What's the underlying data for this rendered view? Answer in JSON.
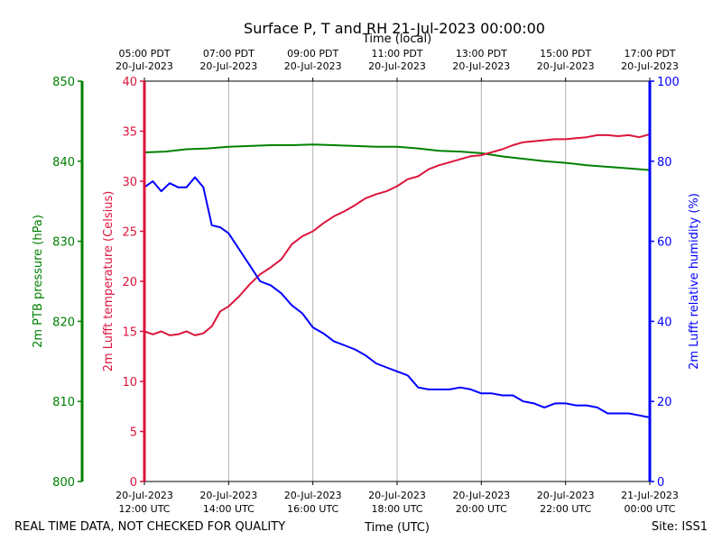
{
  "chart_data": {
    "type": "line",
    "title": "Surface P, T and RH 21-Jul-2023 00:00:00",
    "top_axis_label": "Time (local)",
    "bottom_axis_label": "Time (UTC)",
    "footer_left": "REAL TIME DATA, NOT CHECKED FOR QUALITY",
    "footer_right": "Site: ISS1",
    "x_ticks_utc": [
      {
        "l1": "20-Jul-2023",
        "l2": "12:00 UTC"
      },
      {
        "l1": "20-Jul-2023",
        "l2": "14:00 UTC"
      },
      {
        "l1": "20-Jul-2023",
        "l2": "16:00 UTC"
      },
      {
        "l1": "20-Jul-2023",
        "l2": "18:00 UTC"
      },
      {
        "l1": "20-Jul-2023",
        "l2": "20:00 UTC"
      },
      {
        "l1": "20-Jul-2023",
        "l2": "22:00 UTC"
      },
      {
        "l1": "21-Jul-2023",
        "l2": "00:00 UTC"
      }
    ],
    "x_ticks_local": [
      {
        "l1": "05:00 PDT",
        "l2": "20-Jul-2023"
      },
      {
        "l1": "07:00 PDT",
        "l2": "20-Jul-2023"
      },
      {
        "l1": "09:00 PDT",
        "l2": "20-Jul-2023"
      },
      {
        "l1": "11:00 PDT",
        "l2": "20-Jul-2023"
      },
      {
        "l1": "13:00 PDT",
        "l2": "20-Jul-2023"
      },
      {
        "l1": "15:00 PDT",
        "l2": "20-Jul-2023"
      },
      {
        "l1": "17:00 PDT",
        "l2": "20-Jul-2023"
      }
    ],
    "x_range_hours_utc": [
      12,
      24
    ],
    "grid": "vertical",
    "axes": {
      "pressure": {
        "label": "2m PTB pressure (hPa)",
        "range": [
          800,
          850
        ],
        "ticks": [
          800,
          810,
          820,
          830,
          840,
          850
        ],
        "color": "#008000"
      },
      "temperature": {
        "label": "2m Lufft temperature (Celsius)",
        "range": [
          0,
          40
        ],
        "ticks": [
          0,
          5,
          10,
          15,
          20,
          25,
          30,
          35,
          40
        ],
        "color": "#dc143c"
      },
      "humidity": {
        "label": "2m Lufft relative humidity (%)",
        "range": [
          0,
          100
        ],
        "ticks": [
          0,
          20,
          40,
          60,
          80,
          100
        ],
        "color": "#0000ff"
      }
    },
    "series": [
      {
        "axis": "pressure",
        "color": "#008000",
        "x": [
          12.0,
          12.5,
          13.0,
          13.5,
          14.0,
          14.5,
          15.0,
          15.5,
          16.0,
          16.5,
          17.0,
          17.5,
          18.0,
          18.5,
          19.0,
          19.5,
          20.0,
          20.5,
          21.0,
          21.5,
          22.0,
          22.5,
          23.0,
          23.5,
          24.0
        ],
        "values": [
          841.1,
          841.2,
          841.5,
          841.6,
          841.8,
          841.9,
          842.0,
          842.0,
          842.1,
          842.0,
          841.9,
          841.8,
          841.8,
          841.6,
          841.3,
          841.2,
          841.0,
          840.6,
          840.3,
          840.0,
          839.8,
          839.5,
          839.3,
          839.1,
          838.9
        ]
      },
      {
        "axis": "temperature",
        "color": "#dc143c",
        "x": [
          12.0,
          12.2,
          12.4,
          12.6,
          12.8,
          13.0,
          13.2,
          13.4,
          13.6,
          13.8,
          14.0,
          14.25,
          14.5,
          14.75,
          15.0,
          15.25,
          15.5,
          15.75,
          16.0,
          16.25,
          16.5,
          16.75,
          17.0,
          17.25,
          17.5,
          17.75,
          18.0,
          18.25,
          18.5,
          18.75,
          19.0,
          19.25,
          19.5,
          19.75,
          20.0,
          20.25,
          20.5,
          20.75,
          21.0,
          21.25,
          21.5,
          21.75,
          22.0,
          22.25,
          22.5,
          22.75,
          23.0,
          23.25,
          23.5,
          23.75,
          24.0
        ],
        "values": [
          15.0,
          14.7,
          15.0,
          14.6,
          14.7,
          15.0,
          14.6,
          14.8,
          15.5,
          17.0,
          17.5,
          18.5,
          19.7,
          20.7,
          21.4,
          22.2,
          23.7,
          24.5,
          25.0,
          25.8,
          26.5,
          27.0,
          27.6,
          28.3,
          28.7,
          29.0,
          29.5,
          30.2,
          30.5,
          31.2,
          31.6,
          31.9,
          32.2,
          32.5,
          32.6,
          32.9,
          33.2,
          33.6,
          33.9,
          34.0,
          34.1,
          34.2,
          34.2,
          34.3,
          34.4,
          34.6,
          34.6,
          34.5,
          34.6,
          34.4,
          34.7
        ]
      },
      {
        "axis": "humidity",
        "color": "#0000ff",
        "x": [
          12.0,
          12.2,
          12.4,
          12.6,
          12.8,
          13.0,
          13.2,
          13.4,
          13.6,
          13.8,
          14.0,
          14.25,
          14.5,
          14.75,
          15.0,
          15.25,
          15.5,
          15.75,
          16.0,
          16.25,
          16.5,
          16.75,
          17.0,
          17.25,
          17.5,
          17.75,
          18.0,
          18.25,
          18.5,
          18.75,
          19.0,
          19.25,
          19.5,
          19.75,
          20.0,
          20.25,
          20.5,
          20.75,
          21.0,
          21.25,
          21.5,
          21.75,
          22.0,
          22.25,
          22.5,
          22.75,
          23.0,
          23.25,
          23.5,
          23.75,
          24.0
        ],
        "values": [
          73.5,
          75.0,
          72.5,
          74.5,
          73.5,
          73.5,
          76.0,
          73.5,
          64.0,
          63.5,
          62.0,
          58.0,
          54.0,
          50.0,
          49.0,
          47.0,
          44.0,
          42.0,
          38.5,
          37.0,
          35.0,
          34.0,
          33.0,
          31.5,
          29.5,
          28.5,
          27.5,
          26.5,
          23.5,
          23.0,
          23.0,
          23.0,
          23.5,
          23.0,
          22.0,
          22.0,
          21.5,
          21.5,
          20.0,
          19.5,
          18.5,
          19.5,
          19.5,
          19.0,
          19.0,
          18.5,
          17.0,
          17.0,
          17.0,
          16.5,
          16.0
        ]
      }
    ]
  }
}
